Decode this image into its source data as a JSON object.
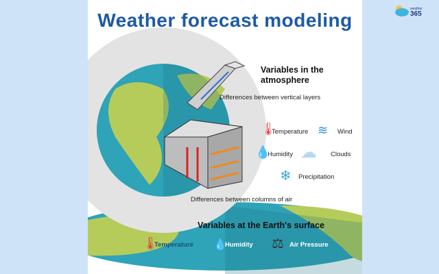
{
  "title": "Weather forecast modeling",
  "logo": {
    "text": "weather 365 .com"
  },
  "atmosphere": {
    "heading": "Variables in the atmosphere",
    "vertical_label": "Differences between vertical layers",
    "columns_label": "Differences between columns of air",
    "variables": [
      {
        "label": "Temperature",
        "icon": "thermometer-icon"
      },
      {
        "label": "Wind",
        "icon": "wind-icon"
      },
      {
        "label": "Humidity",
        "icon": "water-drop-icon"
      },
      {
        "label": "Clouds",
        "icon": "cloud-icon"
      },
      {
        "label": "Precipitation",
        "icon": "snowflake-icon"
      }
    ]
  },
  "surface": {
    "heading": "Variables at the Earth's surface",
    "variables": [
      {
        "label": "Temperature",
        "icon": "thermometer-icon"
      },
      {
        "label": "Humidity",
        "icon": "water-drop-icon"
      },
      {
        "label": "Air Pressure",
        "icon": "scale-icon"
      }
    ]
  },
  "colors": {
    "title": "#1d5aa6",
    "ocean": "#2fa3b8",
    "land": "#b6cc5a",
    "background": "#cfe3f8"
  }
}
